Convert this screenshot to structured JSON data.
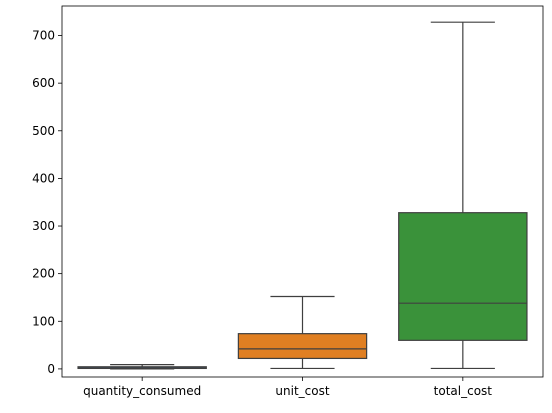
{
  "chart_data": {
    "type": "box",
    "title": "",
    "xlabel": "",
    "ylabel": "",
    "ylim": [
      -17,
      762
    ],
    "yticks": [
      0,
      100,
      200,
      300,
      400,
      500,
      600,
      700
    ],
    "grid": false,
    "legend": "none",
    "categories": [
      "quantity_consumed",
      "unit_cost",
      "total_cost"
    ],
    "boxes": [
      {
        "category": "quantity_consumed",
        "color": "#3a75ad",
        "whisker_low": 0.0,
        "q1": 1.0,
        "median": 2.0,
        "q3": 4.5,
        "whisker_high": 9.0
      },
      {
        "category": "unit_cost",
        "color": "#e07f22",
        "whisker_low": 1.0,
        "q1": 22.0,
        "median": 42.0,
        "q3": 74.0,
        "whisker_high": 152.0
      },
      {
        "category": "total_cost",
        "color": "#3a923a",
        "whisker_low": 1.0,
        "q1": 60.0,
        "median": 138.0,
        "q3": 328.0,
        "whisker_high": 728.0
      }
    ]
  }
}
